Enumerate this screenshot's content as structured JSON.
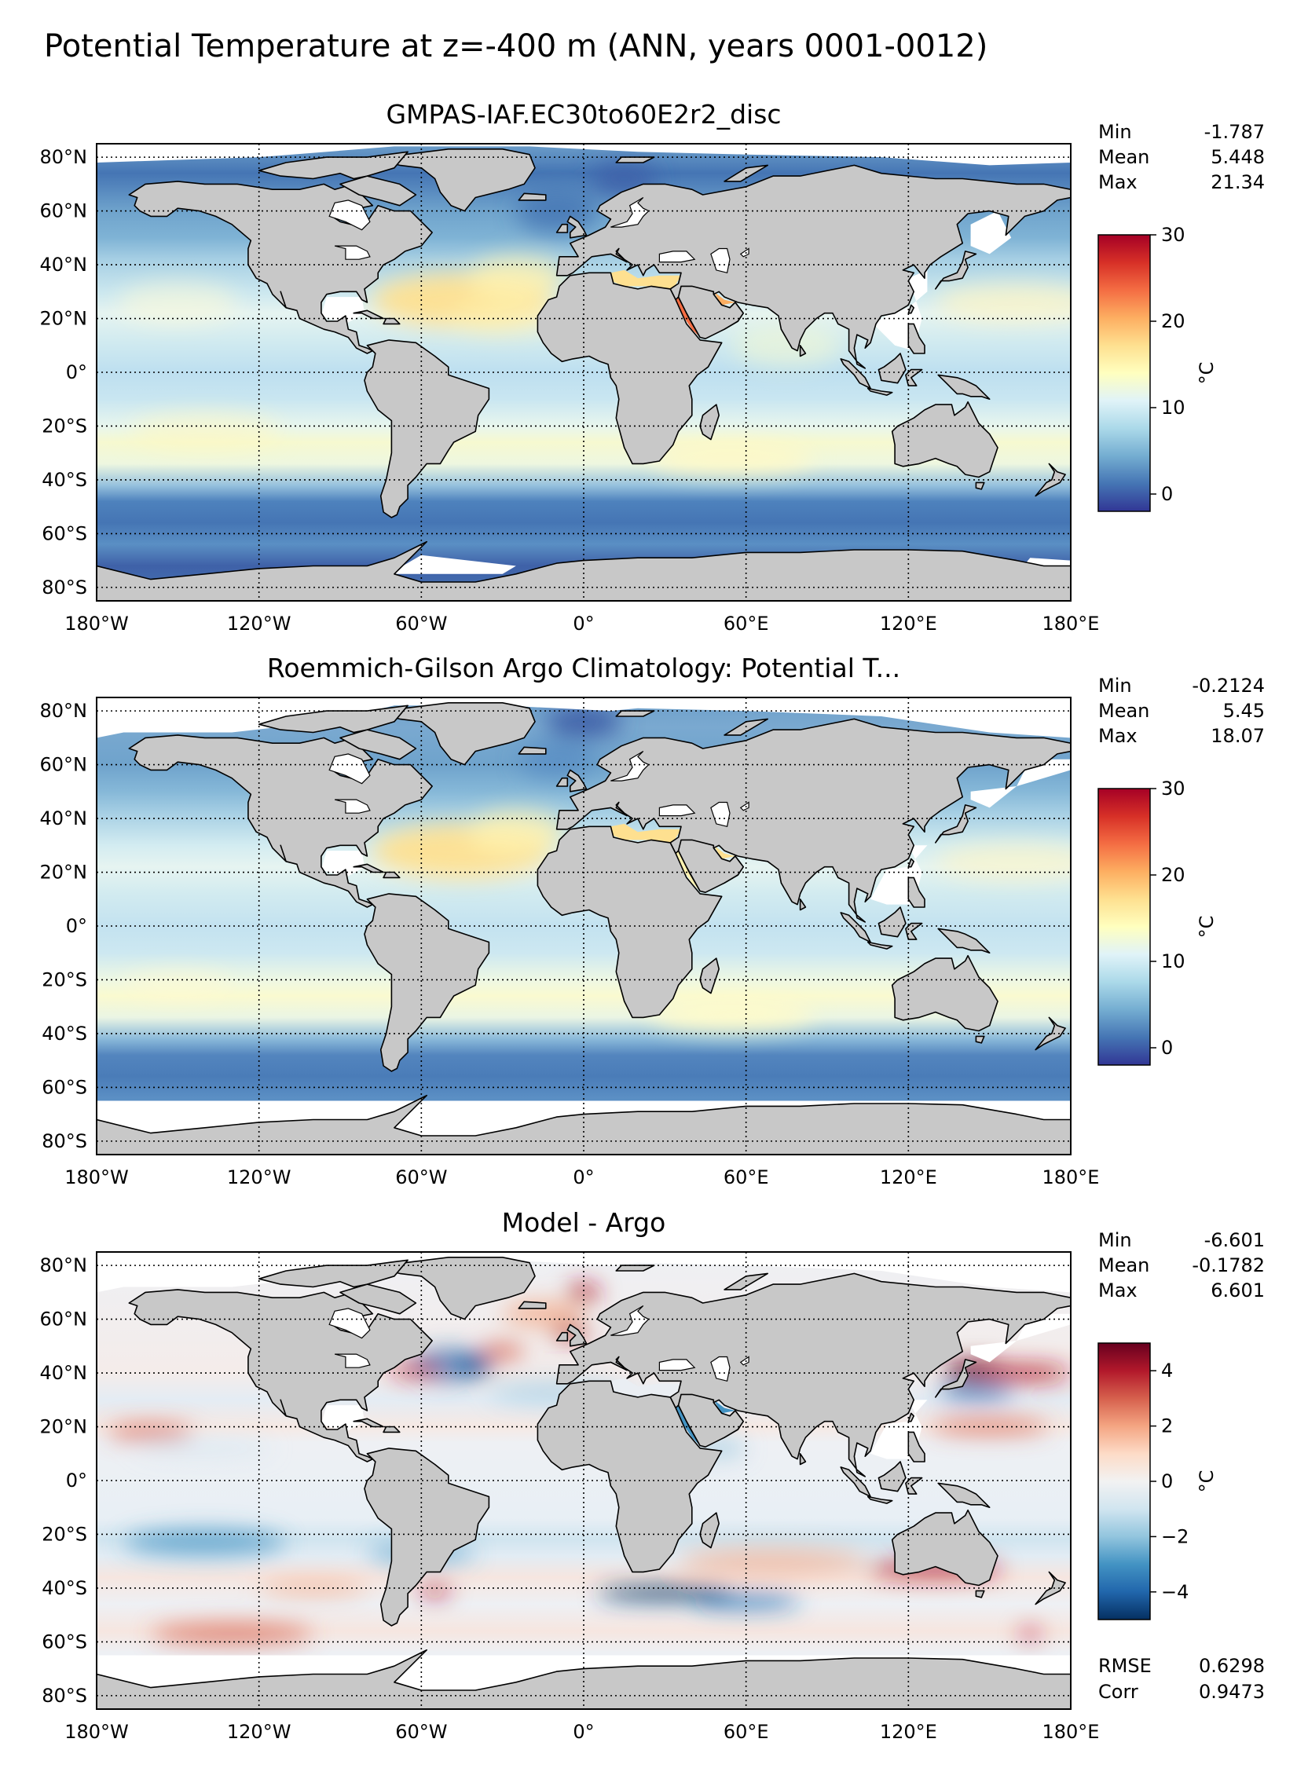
{
  "figure_title": "Potential Temperature at z=-400 m (ANN, years 0001-0012)",
  "x_ticks": [
    "180°W",
    "120°W",
    "60°W",
    "0°",
    "60°E",
    "120°E",
    "180°E"
  ],
  "y_ticks": [
    "80°N",
    "60°N",
    "40°N",
    "20°N",
    "0°",
    "20°S",
    "40°S",
    "60°S",
    "80°S"
  ],
  "colors": {
    "land": "#c8c8c8",
    "missing": "#ffffff",
    "coast": "#000000",
    "rdylbu_r": [
      "#313695",
      "#4575b4",
      "#74add1",
      "#abd9e9",
      "#e0f3f8",
      "#ffffbf",
      "#fee090",
      "#fdae61",
      "#f46d43",
      "#d73027",
      "#a50026"
    ],
    "rdbu_r": [
      "#053061",
      "#2166ac",
      "#4393c3",
      "#92c5de",
      "#d1e5f0",
      "#f2f2f2",
      "#fddbc7",
      "#f4a582",
      "#d6604d",
      "#b2182b",
      "#67001f"
    ]
  },
  "panels": [
    {
      "title": "GMPAS-IAF.EC30to60E2r2_disc",
      "stats": [
        {
          "label": "Min",
          "value": "-1.787"
        },
        {
          "label": "Mean",
          "value": "5.448"
        },
        {
          "label": "Max",
          "value": "21.34"
        }
      ],
      "extra_stats": [],
      "colorbar": {
        "label": "°C",
        "ticks": [
          "0",
          "10",
          "20",
          "30"
        ],
        "tick_values": [
          0,
          10,
          20,
          30
        ],
        "range": [
          -2,
          30
        ],
        "cmap": "rdylbu_r"
      }
    },
    {
      "title": "Roemmich-Gilson Argo Climatology: Potential T...",
      "stats": [
        {
          "label": "Min",
          "value": "-0.2124"
        },
        {
          "label": "Mean",
          "value": "5.45"
        },
        {
          "label": "Max",
          "value": "18.07"
        }
      ],
      "extra_stats": [],
      "colorbar": {
        "label": "°C",
        "ticks": [
          "0",
          "10",
          "20",
          "30"
        ],
        "tick_values": [
          0,
          10,
          20,
          30
        ],
        "range": [
          -2,
          30
        ],
        "cmap": "rdylbu_r"
      }
    },
    {
      "title": "Model - Argo",
      "stats": [
        {
          "label": "Min",
          "value": "-6.601"
        },
        {
          "label": "Mean",
          "value": "-0.1782"
        },
        {
          "label": "Max",
          "value": "6.601"
        }
      ],
      "extra_stats": [
        {
          "label": "RMSE",
          "value": "0.6298"
        },
        {
          "label": "Corr",
          "value": "0.9473"
        }
      ],
      "colorbar": {
        "label": "°C",
        "ticks": [
          "4",
          "2",
          "0",
          "−2",
          "−4"
        ],
        "tick_values": [
          4,
          2,
          0,
          -2,
          -4
        ],
        "range": [
          -5,
          5
        ],
        "cmap": "rdbu_r"
      }
    }
  ],
  "chart_data": {
    "type": "heatmap",
    "projection": "PlateCarree",
    "xlim": [
      -180,
      180
    ],
    "ylim": [
      -85,
      85
    ],
    "grid": true,
    "maps": [
      {
        "field": "model potential temperature at z=-400 m",
        "unit": "°C",
        "min": -1.787,
        "mean": 5.448,
        "max": 21.34,
        "color_range": [
          -2,
          30
        ]
      },
      {
        "field": "Roemmich-Gilson Argo potential temperature at z=-400 m",
        "unit": "°C",
        "min": -0.2124,
        "mean": 5.45,
        "max": 18.07,
        "color_range": [
          -2,
          30
        ]
      },
      {
        "field": "Model - Argo",
        "unit": "°C",
        "min": -6.601,
        "mean": -0.1782,
        "max": 6.601,
        "rmse": 0.6298,
        "corr": 0.9473,
        "color_range": [
          -5,
          5
        ]
      }
    ]
  }
}
